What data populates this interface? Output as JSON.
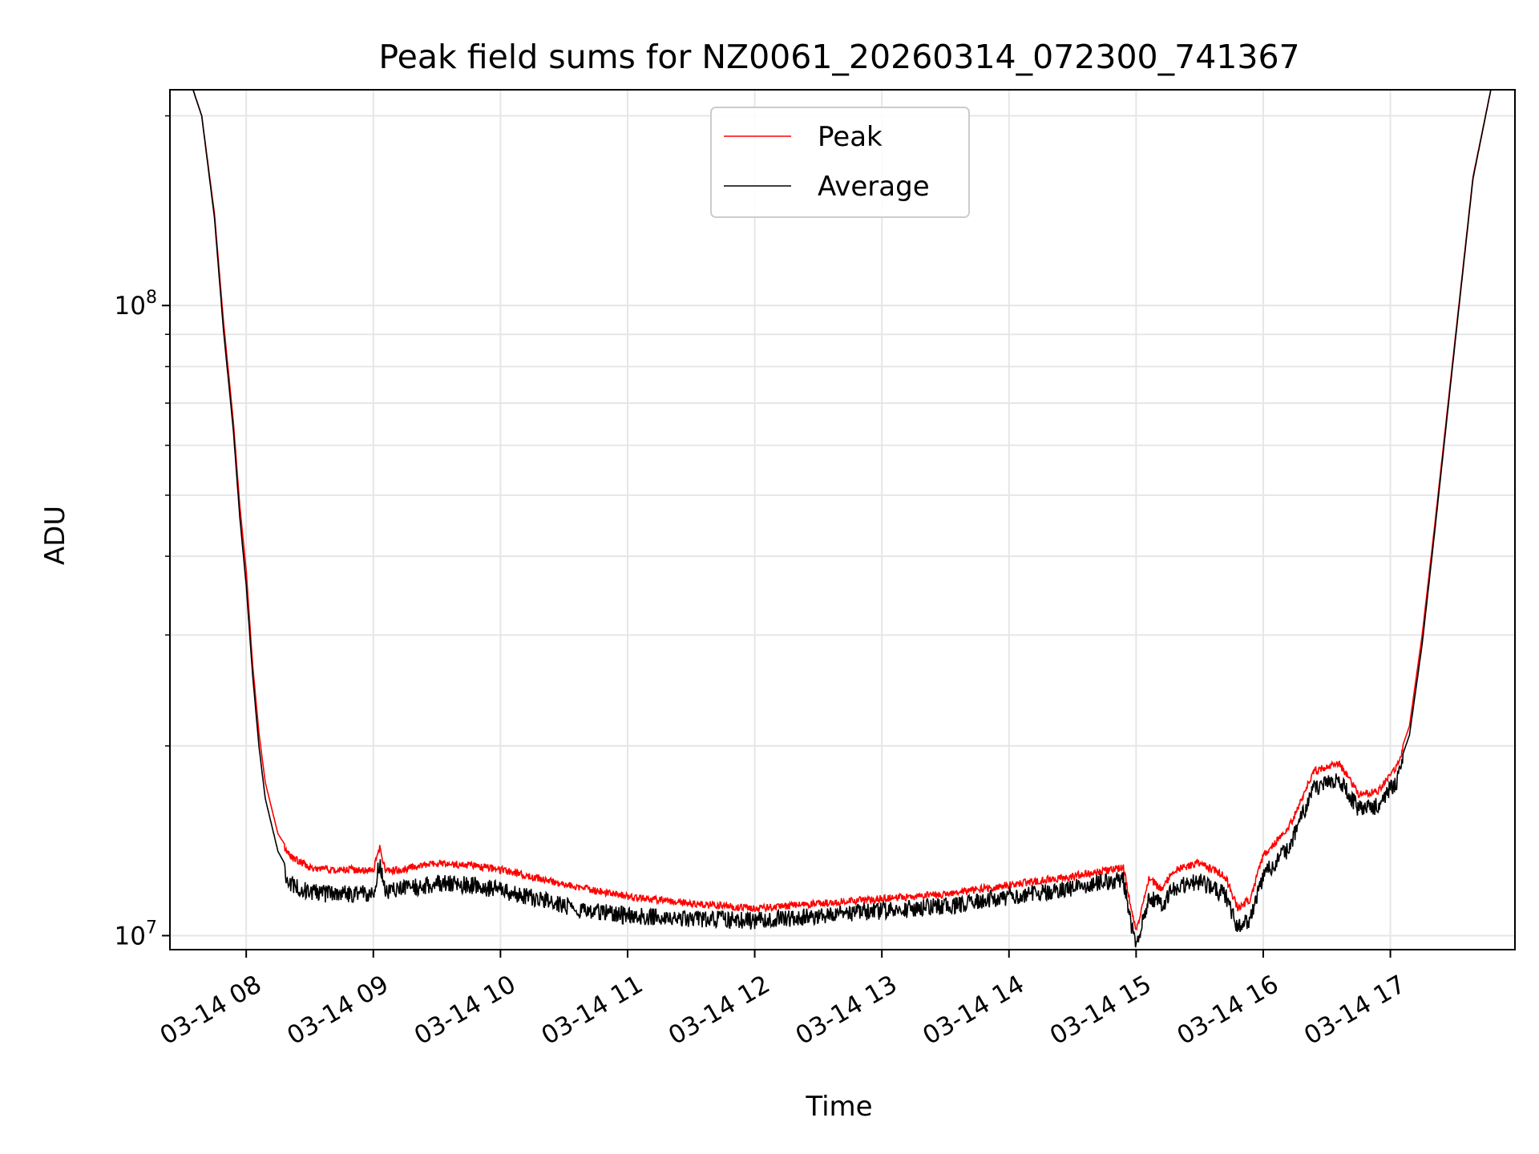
{
  "chart_data": {
    "type": "line",
    "title": "Peak field sums for NZ0061_20260314_072300_741367",
    "xlabel": "Time",
    "ylabel": "ADU",
    "yscale": "log",
    "xlim": [
      7.4,
      17.98
    ],
    "ylim": [
      9500000,
      220000000
    ],
    "grid": true,
    "legend_position": "top-center",
    "x_ticks": [
      {
        "value": 8,
        "label": "03-14 08"
      },
      {
        "value": 9,
        "label": "03-14 09"
      },
      {
        "value": 10,
        "label": "03-14 10"
      },
      {
        "value": 11,
        "label": "03-14 11"
      },
      {
        "value": 12,
        "label": "03-14 12"
      },
      {
        "value": 13,
        "label": "03-14 13"
      },
      {
        "value": 14,
        "label": "03-14 14"
      },
      {
        "value": 15,
        "label": "03-14 15"
      },
      {
        "value": 16,
        "label": "03-14 16"
      },
      {
        "value": 17,
        "label": "03-14 17"
      }
    ],
    "y_major_ticks": [
      {
        "value": 10000000,
        "base": "10",
        "exp": "7"
      },
      {
        "value": 100000000,
        "base": "10",
        "exp": "8"
      }
    ],
    "y_minor_ticks": [
      20000000,
      30000000,
      40000000,
      50000000,
      60000000,
      70000000,
      80000000,
      90000000,
      200000000
    ],
    "series": [
      {
        "name": "Peak",
        "color": "#ff0000",
        "x": [
          7.4,
          7.55,
          7.65,
          7.75,
          7.82,
          7.9,
          7.95,
          8.0,
          8.05,
          8.1,
          8.15,
          8.25,
          8.35,
          8.5,
          8.7,
          9.0,
          9.05,
          9.1,
          9.3,
          9.5,
          9.8,
          10.0,
          10.3,
          10.6,
          11.0,
          11.5,
          12.0,
          12.5,
          13.0,
          13.5,
          14.0,
          14.5,
          14.9,
          14.95,
          15.0,
          15.1,
          15.2,
          15.3,
          15.5,
          15.7,
          15.8,
          15.9,
          16.0,
          16.2,
          16.4,
          16.6,
          16.75,
          16.9,
          17.05,
          17.15,
          17.25,
          17.35,
          17.5,
          17.65,
          17.8,
          17.98
        ],
        "y": [
          230000000,
          230000000,
          200000000,
          140000000,
          95000000,
          65000000,
          48000000,
          38000000,
          27000000,
          21000000,
          17500000,
          14500000,
          13500000,
          13000000,
          12900000,
          12900000,
          14000000,
          12800000,
          13000000,
          13200000,
          13100000,
          12900000,
          12500000,
          12100000,
          11700000,
          11400000,
          11200000,
          11400000,
          11600000,
          11800000,
          12200000,
          12600000,
          13000000,
          11500000,
          10300000,
          12500000,
          12000000,
          12900000,
          13200000,
          12600000,
          11200000,
          11600000,
          13600000,
          15000000,
          18500000,
          19000000,
          17000000,
          17200000,
          18800000,
          21500000,
          30000000,
          45000000,
          85000000,
          160000000,
          225000000,
          230000000
        ]
      },
      {
        "name": "Average",
        "color": "#000000",
        "x": [
          7.4,
          7.55,
          7.65,
          7.75,
          7.82,
          7.9,
          7.95,
          8.0,
          8.05,
          8.1,
          8.15,
          8.25,
          8.35,
          8.5,
          8.7,
          9.0,
          9.05,
          9.1,
          9.3,
          9.5,
          9.8,
          10.0,
          10.3,
          10.6,
          11.0,
          11.5,
          12.0,
          12.5,
          13.0,
          13.5,
          14.0,
          14.5,
          14.9,
          14.95,
          15.0,
          15.1,
          15.2,
          15.3,
          15.5,
          15.7,
          15.8,
          15.9,
          16.0,
          16.2,
          16.4,
          16.6,
          16.75,
          16.9,
          17.05,
          17.15,
          17.25,
          17.35,
          17.5,
          17.65,
          17.8,
          17.98
        ],
        "y": [
          230000000,
          230000000,
          200000000,
          138000000,
          92000000,
          63000000,
          46000000,
          36000000,
          26000000,
          20000000,
          16500000,
          13600000,
          12500000,
          12100000,
          12000000,
          12100000,
          13500000,
          12100000,
          12300000,
          12500000,
          12400000,
          12200000,
          11800000,
          11400000,
          11100000,
          11000000,
          10900000,
          11100000,
          11300000,
          11500000,
          11900000,
          12300000,
          12700000,
          11000000,
          9900000,
          11900000,
          11500000,
          12300000,
          12600000,
          12000000,
          10600000,
          11000000,
          12900000,
          14200000,
          17700000,
          18200000,
          16400000,
          16600000,
          18200000,
          20800000,
          29000000,
          44000000,
          84000000,
          159000000,
          225000000,
          230000000
        ]
      }
    ]
  }
}
